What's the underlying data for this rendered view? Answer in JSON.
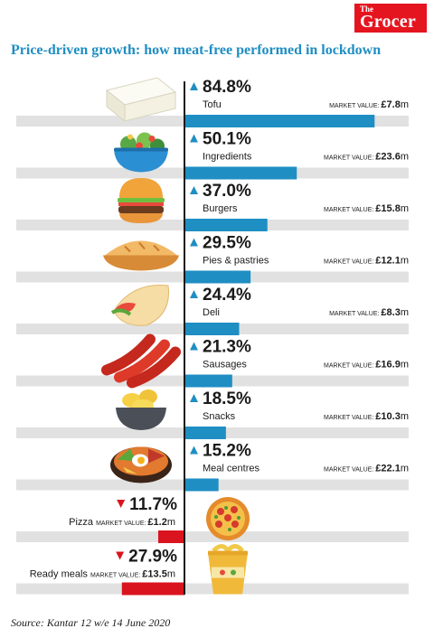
{
  "header": {
    "logo_small": "The",
    "logo_main": "Grocer",
    "title": "Price-driven growth: how meat-free performed in lockdown"
  },
  "source": "Source: Kantar 12 w/e 14 June 2020",
  "market_value_label": "MARKET VALUE:",
  "colors": {
    "growth": "#1f8ec3",
    "decline": "#d9141e",
    "track": "#e1e1e1",
    "title": "#1f8ec3"
  },
  "chart_data": {
    "type": "bar",
    "title": "Price-driven growth: how meat-free performed in lockdown",
    "xlim": [
      -100,
      100
    ],
    "categories": [
      "Tofu",
      "Ingredients",
      "Burgers",
      "Pies & pastries",
      "Deli",
      "Sausages",
      "Snacks",
      "Meal centres",
      "Pizza",
      "Ready meals"
    ],
    "values": [
      84.8,
      50.1,
      37.0,
      29.5,
      24.4,
      21.3,
      18.5,
      15.2,
      -11.7,
      -27.9
    ],
    "value_labels": [
      "84.8%",
      "50.1%",
      "37.0%",
      "29.5%",
      "24.4%",
      "21.3%",
      "18.5%",
      "15.2%",
      "11.7%",
      "27.9%"
    ],
    "market_value": [
      "£7.8",
      "£23.6",
      "£15.8",
      "£12.1",
      "£8.3",
      "£16.9",
      "£10.3",
      "£22.1",
      "£1.2",
      "£13.5"
    ],
    "market_value_unit": "m",
    "icons": [
      "tofu-icon",
      "salad-bowl-icon",
      "burger-icon",
      "pie-icon",
      "wrap-icon",
      "sausages-icon",
      "snacks-bowl-icon",
      "bibimbap-icon",
      "pizza-icon",
      "cup-noodles-icon"
    ]
  }
}
